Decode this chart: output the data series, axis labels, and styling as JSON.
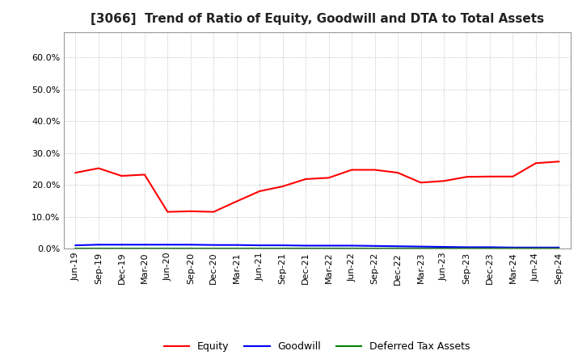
{
  "title": "[3066]  Trend of Ratio of Equity, Goodwill and DTA to Total Assets",
  "x_labels": [
    "Jun-19",
    "Sep-19",
    "Dec-19",
    "Mar-20",
    "Jun-20",
    "Sep-20",
    "Dec-20",
    "Mar-21",
    "Jun-21",
    "Sep-21",
    "Dec-21",
    "Mar-22",
    "Jun-22",
    "Sep-22",
    "Dec-22",
    "Mar-23",
    "Jun-23",
    "Sep-23",
    "Dec-23",
    "Mar-24",
    "Jun-24",
    "Sep-24"
  ],
  "equity": [
    0.238,
    0.252,
    0.228,
    0.232,
    0.115,
    0.117,
    0.115,
    0.148,
    0.18,
    0.195,
    0.218,
    0.222,
    0.247,
    0.247,
    0.238,
    0.207,
    0.212,
    0.225,
    0.226,
    0.226,
    0.268,
    0.273
  ],
  "goodwill": [
    0.01,
    0.012,
    0.012,
    0.012,
    0.012,
    0.012,
    0.011,
    0.011,
    0.01,
    0.01,
    0.009,
    0.009,
    0.009,
    0.008,
    0.007,
    0.006,
    0.005,
    0.004,
    0.004,
    0.003,
    0.003,
    0.003
  ],
  "dta": [
    0.001,
    0.001,
    0.001,
    0.001,
    0.001,
    0.001,
    0.001,
    0.001,
    0.001,
    0.001,
    0.001,
    0.001,
    0.001,
    0.001,
    0.001,
    0.001,
    0.001,
    0.001,
    0.001,
    0.001,
    0.001,
    0.001
  ],
  "equity_color": "#ff0000",
  "goodwill_color": "#0000ff",
  "dta_color": "#008000",
  "ylim": [
    0.0,
    0.68
  ],
  "yticks": [
    0.0,
    0.1,
    0.2,
    0.3,
    0.4,
    0.5,
    0.6
  ],
  "bg_color": "#ffffff",
  "plot_bg_color": "#ffffff",
  "grid_color": "#b0b0b0",
  "title_fontsize": 11,
  "tick_fontsize": 8,
  "legend_labels": [
    "Equity",
    "Goodwill",
    "Deferred Tax Assets"
  ]
}
